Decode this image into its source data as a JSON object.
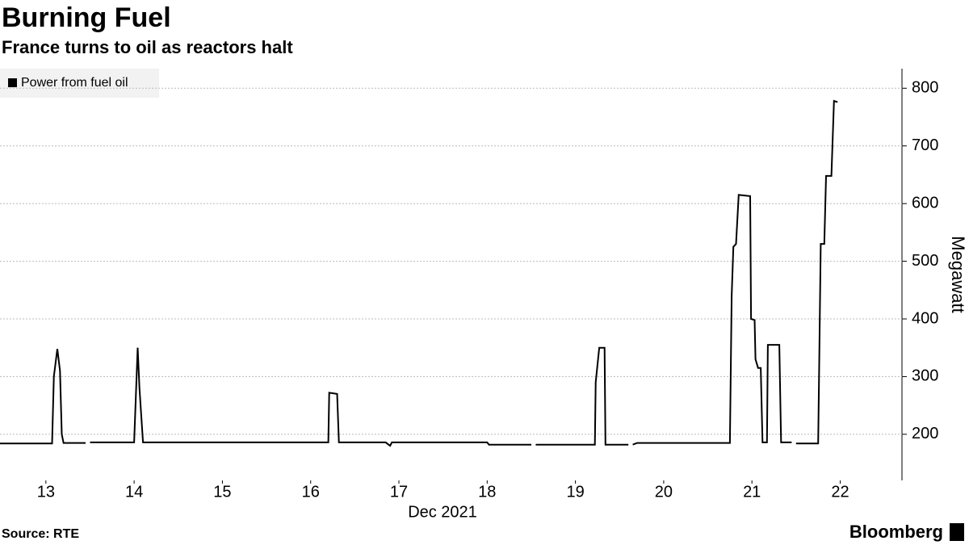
{
  "chart_data": {
    "type": "line",
    "title": "Burning Fuel",
    "subtitle": "France turns to oil as reactors halt",
    "x_label": "Dec 2021",
    "y_label": "Megawatt",
    "source": "Source: RTE",
    "brand": "Bloomberg",
    "legend_position": "upper left",
    "grid": true,
    "x": [
      12.48,
      13.07,
      13.09,
      13.13,
      13.16,
      13.18,
      13.2,
      13.45,
      13.47,
      13.5,
      14.0,
      14.04,
      14.06,
      14.1,
      16.2,
      16.21,
      16.3,
      16.32,
      16.85,
      16.9,
      16.92,
      18.0,
      18.02,
      18.5,
      18.52,
      18.55,
      19.22,
      19.23,
      19.27,
      19.33,
      19.34,
      19.6,
      19.62,
      19.65,
      19.7,
      20.75,
      20.77,
      20.79,
      20.82,
      20.85,
      20.98,
      20.99,
      21.03,
      21.04,
      21.07,
      21.1,
      21.12,
      21.17,
      21.18,
      21.31,
      21.33,
      21.45,
      21.47,
      21.5,
      21.75,
      21.76,
      21.78,
      21.82,
      21.84,
      21.9,
      21.93,
      21.97
    ],
    "series": [
      {
        "name": "Power from fuel oil",
        "color": "#000000",
        "values": [
          184,
          184,
          300,
          348,
          310,
          200,
          185,
          185,
          null,
          186,
          186,
          350,
          280,
          186,
          186,
          272,
          270,
          186,
          186,
          180,
          186,
          186,
          182,
          182,
          null,
          182,
          182,
          290,
          350,
          350,
          182,
          182,
          null,
          182,
          185,
          185,
          440,
          525,
          530,
          615,
          613,
          400,
          398,
          330,
          315,
          315,
          186,
          186,
          355,
          355,
          186,
          186,
          null,
          184,
          184,
          300,
          530,
          530,
          648,
          648,
          778,
          776
        ]
      }
    ],
    "xlim": [
      12.48,
      22.7
    ],
    "xticks": [
      13,
      14,
      15,
      16,
      17,
      18,
      19,
      20,
      21,
      22
    ],
    "ylim": [
      120,
      834
    ],
    "yticks": [
      200,
      300,
      400,
      500,
      600,
      700,
      800
    ]
  }
}
